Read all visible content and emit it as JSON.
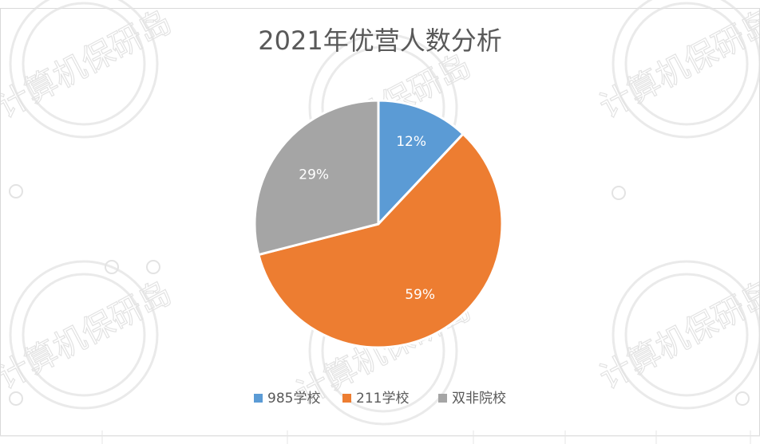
{
  "chart_data": {
    "type": "pie",
    "title": "2021年优营人数分析",
    "categories": [
      "985学校",
      "211学校",
      "双非院校"
    ],
    "values": [
      12,
      59,
      29
    ],
    "data_labels": [
      "12%",
      "59%",
      "29%"
    ],
    "colors": [
      "#5b9bd5",
      "#ed7d31",
      "#a5a5a5"
    ],
    "legend_position": "bottom"
  },
  "watermark": {
    "text": "计算机保研岛"
  }
}
